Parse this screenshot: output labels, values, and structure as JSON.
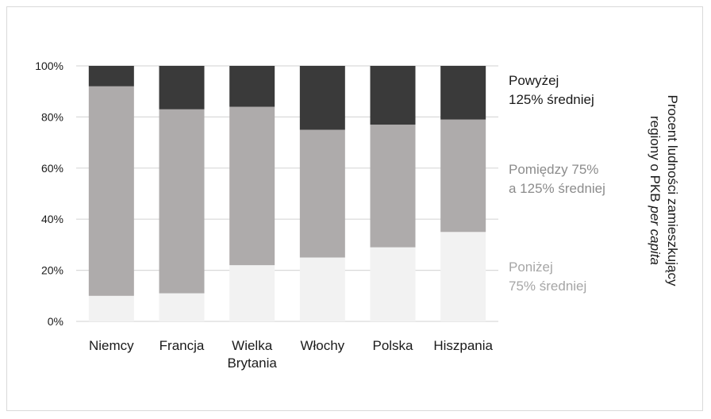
{
  "chart_data": {
    "type": "bar",
    "stacked": true,
    "percent": true,
    "categories": [
      "Niemcy",
      "Francja",
      "Wielka Brytania",
      "Włochy",
      "Polska",
      "Hiszpania"
    ],
    "category_lines": [
      [
        "Niemcy"
      ],
      [
        "Francja"
      ],
      [
        "Wielka",
        "Brytania"
      ],
      [
        "Włochy"
      ],
      [
        "Polska"
      ],
      [
        "Hiszpania"
      ]
    ],
    "series": [
      {
        "name": "Poniżej 75% średniej",
        "name_lines": [
          "Poniżej",
          "75% średniej"
        ],
        "color": "#f2f2f2",
        "text_color": "#a6a6a6",
        "values": [
          10,
          11,
          22,
          25,
          29,
          35
        ]
      },
      {
        "name": "Pomiędzy 75% a 125% średniej",
        "name_lines": [
          "Pomiędzy 75%",
          "a 125% średniej"
        ],
        "color": "#aeabab",
        "text_color": "#8c8c8c",
        "values": [
          82,
          72,
          62,
          50,
          48,
          44
        ]
      },
      {
        "name": "Powyżej 125% średniej",
        "name_lines": [
          "Powyżej",
          "125% średniej"
        ],
        "color": "#3a3a3a",
        "text_color": "#1a1a1a",
        "values": [
          8,
          17,
          16,
          25,
          23,
          21
        ]
      }
    ],
    "ylim": [
      0,
      100
    ],
    "yticks": [
      "0%",
      "20%",
      "40%",
      "60%",
      "80%",
      "100%"
    ],
    "ytick_values": [
      0,
      20,
      40,
      60,
      80,
      100
    ],
    "ylabel_lines": [
      {
        "parts": [
          {
            "text": "Procent ludności zamieszkujący",
            "italic": false
          }
        ]
      },
      {
        "parts": [
          {
            "text": "regiony o PKB ",
            "italic": false
          },
          {
            "text": "per capita",
            "italic": true
          }
        ]
      }
    ],
    "grid": true,
    "legend_position": "right"
  }
}
